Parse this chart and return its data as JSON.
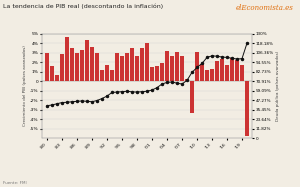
{
  "title": "La tendencia de PIB real (descontando la inflación)",
  "source_text": "Fuente: FMI",
  "years": [
    1980,
    1981,
    1982,
    1983,
    1984,
    1985,
    1986,
    1987,
    1988,
    1989,
    1990,
    1991,
    1992,
    1993,
    1994,
    1995,
    1996,
    1997,
    1998,
    1999,
    2000,
    2001,
    2002,
    2003,
    2004,
    2005,
    2006,
    2007,
    2008,
    2009,
    2010,
    2011,
    2012,
    2013,
    2014,
    2015,
    2016,
    2017,
    2018,
    2019,
    2020
  ],
  "gdp_growth": [
    3.0,
    1.6,
    0.7,
    2.9,
    4.7,
    3.5,
    3.0,
    3.3,
    4.3,
    3.6,
    3.0,
    1.2,
    1.7,
    1.2,
    3.0,
    2.7,
    3.0,
    3.5,
    2.7,
    3.5,
    4.0,
    1.5,
    1.6,
    1.9,
    3.2,
    2.7,
    3.1,
    2.7,
    0.2,
    -3.3,
    3.1,
    1.8,
    1.2,
    1.3,
    2.1,
    2.3,
    1.7,
    2.4,
    2.2,
    1.7,
    -5.8
  ],
  "debt": [
    40.5,
    41.5,
    43.0,
    44.5,
    44.8,
    45.5,
    46.0,
    46.5,
    46.0,
    45.5,
    47.0,
    49.5,
    52.5,
    57.0,
    57.5,
    58.0,
    58.5,
    57.8,
    57.5,
    58.0,
    58.5,
    60.0,
    63.0,
    67.5,
    69.5,
    70.0,
    68.5,
    67.5,
    72.0,
    82.0,
    88.0,
    93.0,
    100.5,
    102.5,
    102.0,
    101.0,
    100.5,
    99.5,
    98.5,
    99.0,
    118.18
  ],
  "bar_color": "#cc3333",
  "line_color": "#111111",
  "background_color": "#f2ede3",
  "ylim_left": [
    -6,
    5
  ],
  "ylim_right": [
    0,
    130
  ],
  "yticks_left": [
    -5,
    -4,
    -3,
    -2,
    -1,
    0,
    1,
    2,
    3,
    4,
    5
  ],
  "ytick_labels_left": [
    "-5%",
    "-4%",
    "-3%",
    "-2%",
    "-1%",
    "0",
    "1%",
    "2%",
    "3%",
    "4%",
    "5%"
  ],
  "yticks_right": [
    0,
    11.82,
    23.64,
    35.45,
    47.27,
    59.09,
    70.91,
    82.73,
    94.55,
    106.36,
    118.18,
    130
  ],
  "ytick_labels_right": [
    "0",
    "11.82%",
    "23.64%",
    "35.45%",
    "47.27%",
    "59.09%",
    "70.91%",
    "82.73%",
    "94.55%",
    "106.36%",
    "118.18%",
    "130%"
  ],
  "ylabel_left": "Crecimiento del PIB (países avanzados)",
  "ylabel_right": "Deuda pública (países avanzados)",
  "legend_gdp": "Crecimiento del PIB (países avanzados)",
  "legend_debt": "Deuda pública (países avanzados)",
  "x_tick_years": [
    1980,
    1983,
    1986,
    1989,
    1992,
    1995,
    1998,
    2001,
    2004,
    2007,
    2010,
    2013,
    2016,
    2019
  ],
  "logo_el": "el",
  "logo_main": "Economista",
  "logo_es": ".es"
}
